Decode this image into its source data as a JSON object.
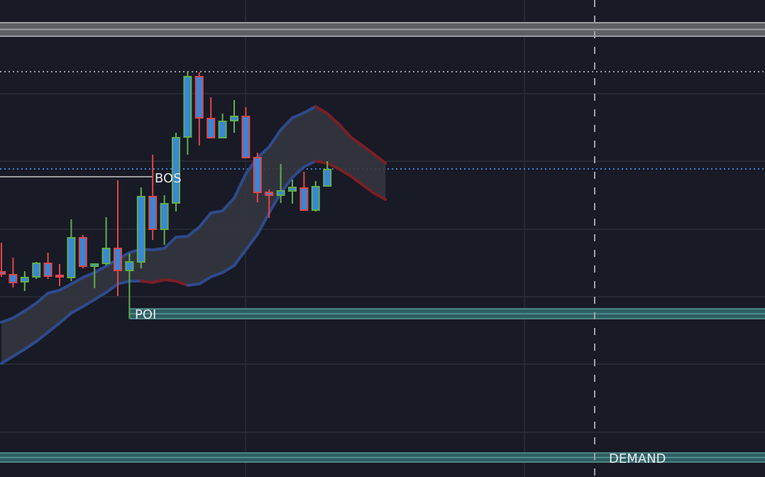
{
  "chart_data": {
    "type": "candlestick",
    "title": "",
    "xlabel": "",
    "ylabel": "",
    "grid": true,
    "colors": {
      "background": "#181a25",
      "grid": "#2a2c37",
      "up_border": "#5fae4e",
      "down_border": "#e0474c",
      "body_fill": "#3a86d8",
      "band_line": "#2f4a8c",
      "band_line_falling": "#7a1f26",
      "band_fill": "#34363f",
      "resistance_zone": "#5d5f64",
      "resistance_zone_edge": "#9b9da2",
      "poi_zone": "#2e5e62",
      "poi_zone_edge": "#5a9a9b",
      "bos_line": "#9b9da2",
      "blue_dotted": "#3a86d8",
      "grey_dotted": "#9b9da2",
      "vertical_dashed": "#a0a2a8"
    },
    "candles": [
      {
        "o": 28.9,
        "h": 33.0,
        "l": 28.2,
        "c": 28.6
      },
      {
        "o": 28.5,
        "h": 30.9,
        "l": 26.7,
        "c": 27.4
      },
      {
        "o": 27.5,
        "h": 29.0,
        "l": 26.2,
        "c": 28.1
      },
      {
        "o": 28.2,
        "h": 30.3,
        "l": 27.9,
        "c": 30.1
      },
      {
        "o": 30.1,
        "h": 31.6,
        "l": 27.9,
        "c": 28.3
      },
      {
        "o": 28.4,
        "h": 30.0,
        "l": 26.9,
        "c": 28.2
      },
      {
        "o": 28.1,
        "h": 36.3,
        "l": 27.6,
        "c": 33.7
      },
      {
        "o": 33.7,
        "h": 34.1,
        "l": 29.4,
        "c": 29.7
      },
      {
        "o": 29.7,
        "h": 30.0,
        "l": 26.6,
        "c": 30.0
      },
      {
        "o": 30.1,
        "h": 36.6,
        "l": 29.8,
        "c": 32.2
      },
      {
        "o": 32.2,
        "h": 41.8,
        "l": 25.5,
        "c": 29.1
      },
      {
        "o": 29.1,
        "h": 31.5,
        "l": 22.3,
        "c": 30.3
      },
      {
        "o": 30.3,
        "h": 40.8,
        "l": 29.4,
        "c": 39.5
      },
      {
        "o": 39.5,
        "h": 45.4,
        "l": 33.4,
        "c": 34.9
      },
      {
        "o": 34.9,
        "h": 39.7,
        "l": 32.7,
        "c": 38.5
      },
      {
        "o": 38.6,
        "h": 48.5,
        "l": 37.4,
        "c": 47.8
      },
      {
        "o": 47.9,
        "h": 57.1,
        "l": 45.4,
        "c": 56.4
      },
      {
        "o": 56.4,
        "h": 57.0,
        "l": 46.7,
        "c": 50.6
      },
      {
        "o": 50.5,
        "h": 53.5,
        "l": 47.7,
        "c": 47.8
      },
      {
        "o": 47.8,
        "h": 51.2,
        "l": 47.8,
        "c": 50.1
      },
      {
        "o": 50.2,
        "h": 53.1,
        "l": 48.5,
        "c": 50.8
      },
      {
        "o": 50.8,
        "h": 52.1,
        "l": 45.0,
        "c": 45.0
      },
      {
        "o": 45.0,
        "h": 45.7,
        "l": 38.7,
        "c": 40.1
      },
      {
        "o": 40.1,
        "h": 40.5,
        "l": 36.5,
        "c": 39.7
      },
      {
        "o": 39.7,
        "h": 44.1,
        "l": 38.6,
        "c": 40.3
      },
      {
        "o": 40.3,
        "h": 41.9,
        "l": 38.5,
        "c": 40.8
      },
      {
        "o": 40.7,
        "h": 43.0,
        "l": 37.6,
        "c": 37.6
      },
      {
        "o": 37.6,
        "h": 41.7,
        "l": 37.4,
        "c": 40.9
      },
      {
        "o": 41.0,
        "h": 44.5,
        "l": 41.0,
        "c": 43.3
      }
    ],
    "band": {
      "upper": [
        21.8,
        22.4,
        23.4,
        24.5,
        25.9,
        26.3,
        27.2,
        28.1,
        28.8,
        29.7,
        30.7,
        31.6,
        32.1,
        32.0,
        32.2,
        33.8,
        33.9,
        35.2,
        37.2,
        37.5,
        39.3,
        42.7,
        45.0,
        46.5,
        48.9,
        50.6,
        51.3,
        52.2,
        51.2,
        49.7,
        47.9,
        46.7,
        45.5,
        44.2
      ],
      "lower": [
        16.0,
        17.0,
        18.0,
        19.1,
        20.4,
        21.7,
        23.1,
        24.0,
        25.0,
        26.0,
        27.2,
        27.6,
        27.6,
        27.4,
        27.8,
        27.6,
        27.0,
        27.2,
        28.2,
        28.8,
        29.8,
        32.0,
        34.2,
        37.2,
        40.0,
        42.2,
        43.7,
        44.5,
        44.2,
        43.4,
        42.4,
        41.2,
        40.0,
        39.1
      ],
      "upper_falling_segments": [
        27,
        28,
        29,
        30,
        31,
        32
      ],
      "lower_falling_segments": [
        12,
        13,
        14,
        15,
        27,
        28,
        29,
        30,
        31,
        32
      ]
    },
    "levels": {
      "resistance_zone": {
        "low": 62.1,
        "high": 64.0
      },
      "grey_dotted": 57.1,
      "blue_dotted": 43.4,
      "bos": {
        "price": 42.3,
        "label": "BOS"
      },
      "poi": {
        "low": 22.3,
        "high": 23.7,
        "label": "POI"
      },
      "demand": {
        "low": 2.1,
        "high": 3.4,
        "label": "DEMAND"
      }
    }
  }
}
